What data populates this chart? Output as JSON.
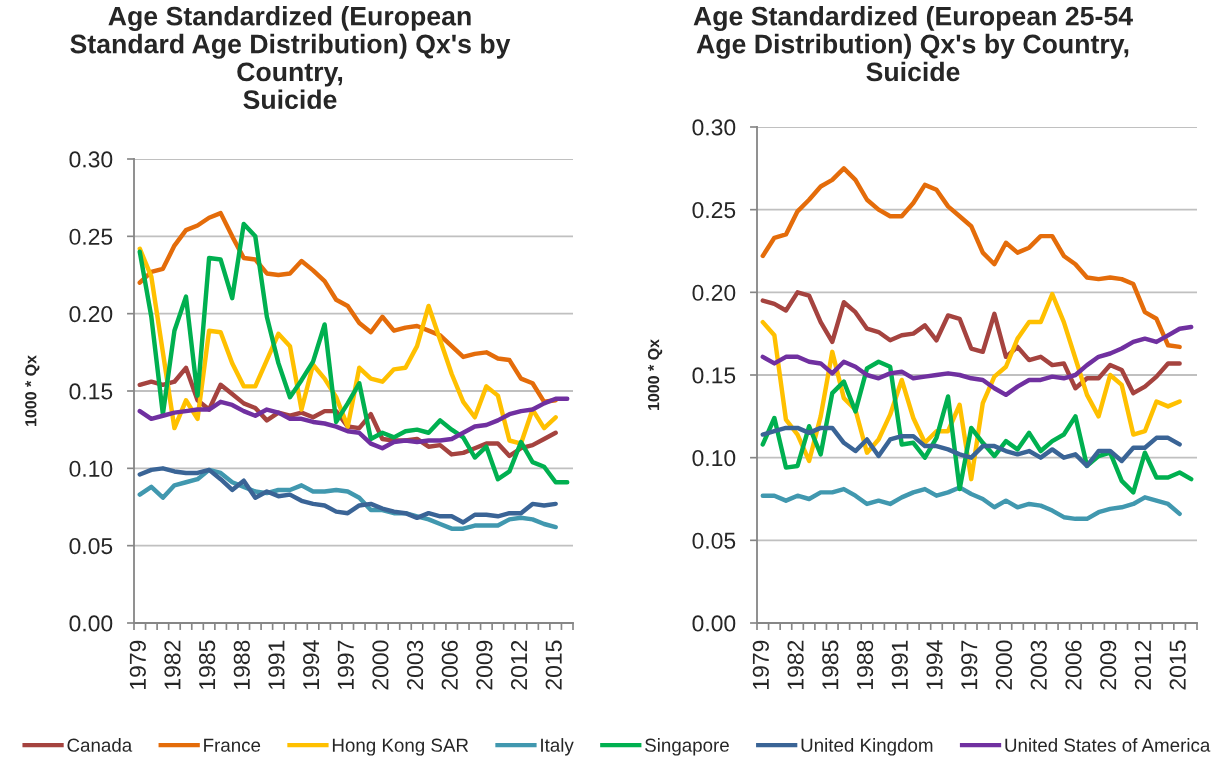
{
  "chart_data": [
    {
      "type": "line",
      "title": "Age Standardized (European\nStandard Age Distribution) Qx's by\nCountry,\nSuicide",
      "ylabel": "1000 * Qx",
      "categories": [
        "1979",
        null,
        null,
        "1982",
        null,
        null,
        "1985",
        null,
        null,
        "1988",
        null,
        null,
        "1991",
        null,
        null,
        "1994",
        null,
        null,
        "1997",
        null,
        null,
        "2000",
        null,
        null,
        "2003",
        null,
        null,
        "2006",
        null,
        null,
        "2009",
        null,
        null,
        "2012",
        null,
        null,
        "2015",
        null
      ],
      "ylim": [
        0,
        0.3
      ],
      "yticks": [
        {
          "value": 0,
          "label": "0.00"
        },
        {
          "value": 0.05,
          "label": "0.05"
        },
        {
          "value": 0.1,
          "label": "0.10"
        },
        {
          "value": 0.15,
          "label": "0.15"
        },
        {
          "value": 0.2,
          "label": "0.20"
        },
        {
          "value": 0.25,
          "label": "0.25"
        },
        {
          "value": 0.3,
          "label": "0.30"
        }
      ],
      "grid": "y",
      "legend": "bottom",
      "series": [
        {
          "name": "Canada",
          "color": "#a5433f",
          "values": [
            0.154,
            0.156,
            0.154,
            0.156,
            0.165,
            0.144,
            0.138,
            0.154,
            0.148,
            0.142,
            0.139,
            0.131,
            0.136,
            0.134,
            0.136,
            0.133,
            0.137,
            0.137,
            0.127,
            0.126,
            0.135,
            0.119,
            0.118,
            0.118,
            0.119,
            0.114,
            0.115,
            0.109,
            0.11,
            0.113,
            0.116,
            0.116,
            0.108,
            0.113,
            0.115,
            0.119,
            0.123,
            null
          ]
        },
        {
          "name": "France",
          "color": "#e46c0a",
          "values": [
            0.22,
            0.227,
            0.229,
            0.244,
            0.254,
            0.257,
            0.262,
            0.265,
            0.25,
            0.236,
            0.235,
            0.226,
            0.225,
            0.226,
            0.234,
            0.228,
            0.221,
            0.209,
            0.205,
            0.194,
            0.188,
            0.198,
            0.189,
            0.191,
            0.192,
            0.189,
            0.186,
            0.179,
            0.172,
            0.174,
            0.175,
            0.171,
            0.17,
            0.158,
            0.155,
            0.143,
            0.144,
            null
          ]
        },
        {
          "name": "Hong Kong SAR",
          "color": "#ffc000",
          "values": [
            0.242,
            0.224,
            0.175,
            0.126,
            0.144,
            0.132,
            0.189,
            0.188,
            0.168,
            0.153,
            0.153,
            0.17,
            0.187,
            0.179,
            0.138,
            0.167,
            0.158,
            0.146,
            0.127,
            0.165,
            0.158,
            0.156,
            0.164,
            0.165,
            0.179,
            0.205,
            0.183,
            0.161,
            0.143,
            0.133,
            0.153,
            0.147,
            0.118,
            0.116,
            0.138,
            0.126,
            0.133,
            null
          ]
        },
        {
          "name": "Italy",
          "color": "#4198af",
          "values": [
            0.083,
            0.088,
            0.081,
            0.089,
            0.091,
            0.093,
            0.099,
            0.097,
            0.091,
            0.088,
            0.085,
            0.084,
            0.086,
            0.086,
            0.089,
            0.085,
            0.085,
            0.086,
            0.085,
            0.081,
            0.073,
            0.073,
            0.071,
            0.071,
            0.069,
            0.067,
            0.064,
            0.061,
            0.061,
            0.063,
            0.063,
            0.063,
            0.067,
            0.068,
            0.067,
            0.064,
            0.062,
            null
          ]
        },
        {
          "name": "Singapore",
          "color": "#00b050",
          "values": [
            0.24,
            0.198,
            0.135,
            0.189,
            0.211,
            0.147,
            0.236,
            0.235,
            0.21,
            0.258,
            0.25,
            0.198,
            0.168,
            0.146,
            0.157,
            0.169,
            0.193,
            0.13,
            0.142,
            0.155,
            0.119,
            0.123,
            0.12,
            0.124,
            0.125,
            0.123,
            0.131,
            0.125,
            0.12,
            0.107,
            0.114,
            0.093,
            0.098,
            0.117,
            0.104,
            0.101,
            0.091,
            0.091
          ]
        },
        {
          "name": "United Kingdom",
          "color": "#3a6496",
          "values": [
            0.096,
            0.099,
            0.1,
            0.098,
            0.097,
            0.097,
            0.099,
            0.093,
            0.086,
            0.092,
            0.081,
            0.085,
            0.082,
            0.083,
            0.079,
            0.077,
            0.076,
            0.072,
            0.071,
            0.076,
            0.077,
            0.074,
            0.072,
            0.071,
            0.068,
            0.071,
            0.069,
            0.069,
            0.065,
            0.07,
            0.07,
            0.069,
            0.071,
            0.071,
            0.077,
            0.076,
            0.077,
            null
          ]
        },
        {
          "name": "United States of America",
          "color": "#7030a0",
          "values": [
            0.137,
            0.132,
            0.134,
            0.136,
            0.137,
            0.138,
            0.138,
            0.143,
            0.141,
            0.137,
            0.134,
            0.138,
            0.136,
            0.132,
            0.132,
            0.13,
            0.129,
            0.127,
            0.124,
            0.123,
            0.116,
            0.113,
            0.117,
            0.118,
            0.117,
            0.118,
            0.118,
            0.119,
            0.123,
            0.127,
            0.128,
            0.131,
            0.135,
            0.137,
            0.138,
            0.142,
            0.145,
            0.145
          ]
        }
      ]
    },
    {
      "type": "line",
      "title": "Age Standardized (European 25-54\nAge Distribution) Qx's by Country,\nSuicide",
      "ylabel": "1000 * Qx",
      "categories": [
        "1979",
        null,
        null,
        "1982",
        null,
        null,
        "1985",
        null,
        null,
        "1988",
        null,
        null,
        "1991",
        null,
        null,
        "1994",
        null,
        null,
        "1997",
        null,
        null,
        "2000",
        null,
        null,
        "2003",
        null,
        null,
        "2006",
        null,
        null,
        "2009",
        null,
        null,
        "2012",
        null,
        null,
        "2015",
        null
      ],
      "ylim": [
        0,
        0.3
      ],
      "yticks": [
        {
          "value": 0,
          "label": "0.00"
        },
        {
          "value": 0.05,
          "label": "0.05"
        },
        {
          "value": 0.1,
          "label": "0.10"
        },
        {
          "value": 0.15,
          "label": "0.15"
        },
        {
          "value": 0.2,
          "label": "0.20"
        },
        {
          "value": 0.25,
          "label": "0.25"
        },
        {
          "value": 0.3,
          "label": "0.30"
        }
      ],
      "grid": "y",
      "legend": "bottom",
      "series": [
        {
          "name": "Canada",
          "color": "#a5433f",
          "values": [
            0.195,
            0.193,
            0.189,
            0.2,
            0.198,
            0.182,
            0.17,
            0.194,
            0.188,
            0.178,
            0.176,
            0.171,
            0.174,
            0.175,
            0.18,
            0.171,
            0.186,
            0.184,
            0.166,
            0.164,
            0.187,
            0.161,
            0.167,
            0.159,
            0.161,
            0.156,
            0.157,
            0.142,
            0.148,
            0.148,
            0.156,
            0.153,
            0.139,
            0.143,
            0.149,
            0.157,
            0.157,
            null
          ]
        },
        {
          "name": "France",
          "color": "#e46c0a",
          "values": [
            0.222,
            0.233,
            0.235,
            0.249,
            0.256,
            0.264,
            0.268,
            0.275,
            0.268,
            0.256,
            0.25,
            0.246,
            0.246,
            0.254,
            0.265,
            0.262,
            0.252,
            0.246,
            0.24,
            0.224,
            0.217,
            0.23,
            0.224,
            0.227,
            0.234,
            0.234,
            0.222,
            0.217,
            0.209,
            0.208,
            0.209,
            0.208,
            0.205,
            0.188,
            0.184,
            0.168,
            0.167,
            null
          ]
        },
        {
          "name": "Hong Kong SAR",
          "color": "#ffc000",
          "values": [
            0.182,
            0.174,
            0.123,
            0.114,
            0.098,
            0.125,
            0.164,
            0.136,
            0.129,
            0.103,
            0.111,
            0.126,
            0.147,
            0.124,
            0.109,
            0.116,
            0.116,
            0.132,
            0.087,
            0.133,
            0.149,
            0.155,
            0.172,
            0.182,
            0.182,
            0.199,
            0.182,
            0.16,
            0.138,
            0.125,
            0.15,
            0.144,
            0.114,
            0.116,
            0.134,
            0.131,
            0.134,
            null
          ]
        },
        {
          "name": "Italy",
          "color": "#4198af",
          "values": [
            0.077,
            0.077,
            0.074,
            0.077,
            0.075,
            0.079,
            0.079,
            0.081,
            0.077,
            0.072,
            0.074,
            0.072,
            0.076,
            0.079,
            0.081,
            0.077,
            0.079,
            0.082,
            0.078,
            0.075,
            0.07,
            0.074,
            0.07,
            0.072,
            0.071,
            0.068,
            0.064,
            0.063,
            0.063,
            0.067,
            0.069,
            0.07,
            0.072,
            0.076,
            0.074,
            0.072,
            0.066,
            null
          ]
        },
        {
          "name": "Singapore",
          "color": "#00b050",
          "values": [
            0.108,
            0.124,
            0.094,
            0.095,
            0.119,
            0.102,
            0.139,
            0.146,
            0.128,
            0.154,
            0.158,
            0.155,
            0.108,
            0.109,
            0.1,
            0.112,
            0.137,
            0.081,
            0.118,
            0.109,
            0.101,
            0.11,
            0.105,
            0.115,
            0.104,
            0.11,
            0.114,
            0.125,
            0.095,
            0.101,
            0.103,
            0.086,
            0.079,
            0.103,
            0.088,
            0.088,
            0.091,
            0.087
          ]
        },
        {
          "name": "United Kingdom",
          "color": "#3a6496",
          "values": [
            0.114,
            0.116,
            0.118,
            0.118,
            0.115,
            0.118,
            0.118,
            0.109,
            0.104,
            0.111,
            0.101,
            0.111,
            0.113,
            0.113,
            0.107,
            0.107,
            0.105,
            0.102,
            0.1,
            0.107,
            0.107,
            0.104,
            0.102,
            0.104,
            0.1,
            0.105,
            0.1,
            0.102,
            0.095,
            0.104,
            0.104,
            0.098,
            0.106,
            0.106,
            0.112,
            0.112,
            0.108,
            null
          ]
        },
        {
          "name": "United States of America",
          "color": "#7030a0",
          "values": [
            0.161,
            0.157,
            0.161,
            0.161,
            0.158,
            0.157,
            0.151,
            0.158,
            0.155,
            0.15,
            0.148,
            0.151,
            0.152,
            0.148,
            0.149,
            0.15,
            0.151,
            0.15,
            0.148,
            0.147,
            0.142,
            0.138,
            0.143,
            0.147,
            0.147,
            0.149,
            0.148,
            0.15,
            0.156,
            0.161,
            0.163,
            0.166,
            0.17,
            0.172,
            0.17,
            0.174,
            0.178,
            0.179
          ]
        }
      ]
    }
  ]
}
